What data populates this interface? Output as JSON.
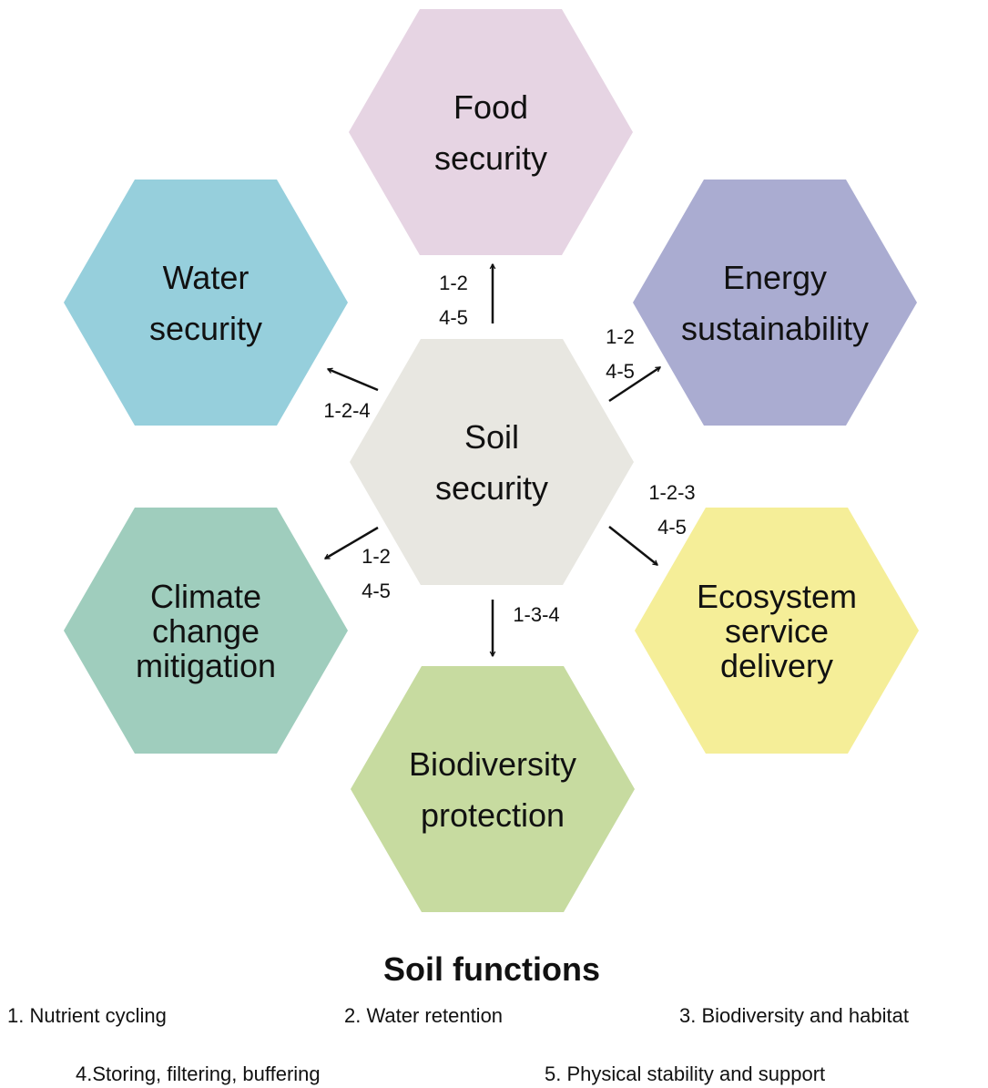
{
  "nodes": [
    {
      "label": [
        "Food",
        "security"
      ]
    },
    {
      "label": [
        "Water",
        "security"
      ]
    },
    {
      "label": [
        "Energy",
        "sustainability"
      ]
    },
    {
      "label": [
        "Soil",
        "security"
      ]
    },
    {
      "label": [
        "Climate",
        "change",
        "mitigation"
      ]
    },
    {
      "label": [
        "Ecosystem",
        "service",
        "delivery"
      ]
    },
    {
      "label": [
        "Biodiversity",
        "protection"
      ]
    }
  ],
  "arrows": [
    {
      "label": [
        "1-2",
        "4-5"
      ]
    },
    {
      "label": [
        "1-2-4"
      ]
    },
    {
      "label": [
        "1-2",
        "4-5"
      ]
    },
    {
      "label": [
        "1-2-3",
        "4-5"
      ]
    },
    {
      "label": [
        "1-2",
        "4-5"
      ]
    },
    {
      "label": [
        "1-3-4"
      ]
    }
  ],
  "legend": {
    "title": "Soil functions",
    "items": [
      "1. Nutrient cycling",
      "2. Water retention",
      "3. Biodiversity and habitat",
      "4.Storing, filtering, buffering",
      "5. Physical stability and support"
    ]
  }
}
